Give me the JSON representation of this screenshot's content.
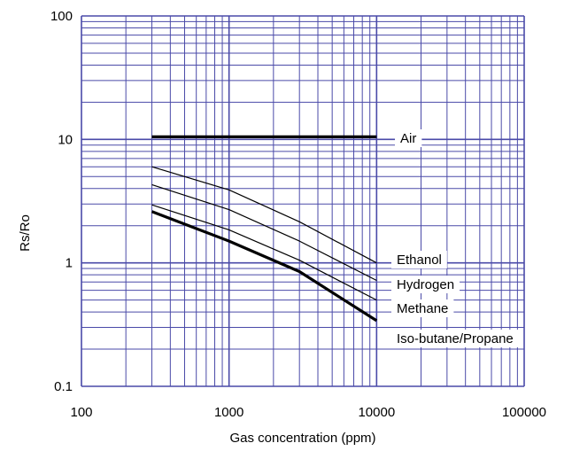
{
  "chart_data": {
    "type": "line",
    "title": "",
    "xlabel": "Gas concentration (ppm)",
    "ylabel": "Rs/Ro",
    "x_scale": "log",
    "y_scale": "log",
    "xlim": [
      100,
      100000
    ],
    "ylim": [
      0.1,
      100
    ],
    "grid": true,
    "x_ticks": [
      100,
      1000,
      10000,
      100000
    ],
    "x_tick_labels": [
      "100",
      "1000",
      "10000",
      "100000"
    ],
    "y_ticks": [
      0.1,
      1,
      10,
      100
    ],
    "y_tick_labels": [
      "0.1",
      "1",
      "10",
      "100"
    ],
    "colors": {
      "grid": "#4a4aa8",
      "series": "#000000"
    },
    "series": [
      {
        "name": "Air",
        "style": "thick",
        "x": [
          300,
          10000
        ],
        "y": [
          10.5,
          10.5
        ]
      },
      {
        "name": "Ethanol",
        "style": "thin",
        "x": [
          300,
          1000,
          3000,
          10000
        ],
        "y": [
          6.0,
          3.9,
          2.15,
          1.0
        ]
      },
      {
        "name": "Hydrogen",
        "style": "thin",
        "x": [
          300,
          1000,
          3000,
          10000
        ],
        "y": [
          4.3,
          2.7,
          1.5,
          0.72
        ]
      },
      {
        "name": "Methane",
        "style": "thin",
        "x": [
          300,
          1000,
          3000,
          10000
        ],
        "y": [
          2.95,
          1.85,
          1.05,
          0.5
        ]
      },
      {
        "name": "Iso-butane/Propane",
        "style": "thick",
        "x": [
          300,
          1000,
          3000,
          10000
        ],
        "y": [
          2.6,
          1.5,
          0.85,
          0.34
        ]
      }
    ]
  }
}
